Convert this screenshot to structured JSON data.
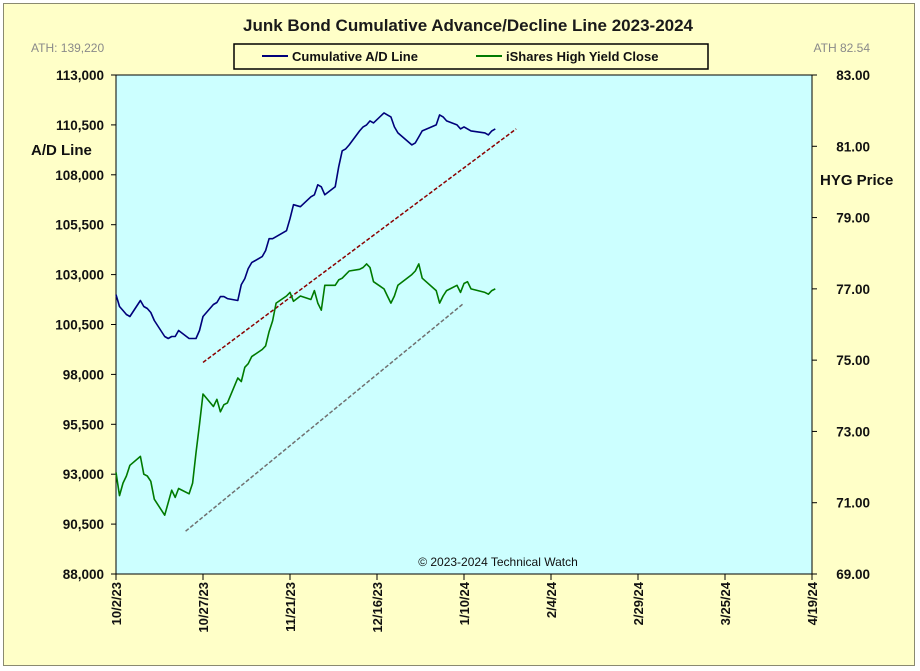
{
  "chart_data": {
    "type": "line",
    "title": "Junk Bond Cumulative  Advance/Decline  Line 2023-2024",
    "ath_left": "ATH: 139,220",
    "ath_right": "ATH 82.54",
    "ylabel_left": "A/D Line",
    "ylabel_right": "HYG Price",
    "copyright": "© 2023-2024  Technical Watch",
    "x_ticks": [
      "10/2/23",
      "10/27/23",
      "11/21/23",
      "12/16/23",
      "1/10/24",
      "2/4/24",
      "2/29/24",
      "3/25/24",
      "4/19/24"
    ],
    "x_range": [
      "2023-10-02",
      "2024-04-19"
    ],
    "ylim_left": [
      88000,
      113000
    ],
    "yticks_left": [
      "113,000",
      "110,500",
      "108,000",
      "105,500",
      "103,000",
      "100,500",
      "98,000",
      "95,500",
      "93,000",
      "90,500",
      "88,000"
    ],
    "ylim_right": [
      69.0,
      83.0
    ],
    "yticks_right": [
      "83.00",
      "81.00",
      "79.00",
      "77.00",
      "75.00",
      "73.00",
      "71.00",
      "69.00"
    ],
    "legend": [
      "Cumulative A/D Line",
      "iShares High Yield Close"
    ],
    "grid": false,
    "background": "#ccffff",
    "series": [
      {
        "name": "Cumulative A/D Line",
        "axis": "left",
        "color": "#00007a",
        "x": [
          "2023-10-02",
          "2023-10-03",
          "2023-10-04",
          "2023-10-05",
          "2023-10-06",
          "2023-10-09",
          "2023-10-10",
          "2023-10-11",
          "2023-10-12",
          "2023-10-13",
          "2023-10-16",
          "2023-10-17",
          "2023-10-18",
          "2023-10-19",
          "2023-10-20",
          "2023-10-23",
          "2023-10-24",
          "2023-10-25",
          "2023-10-26",
          "2023-10-27",
          "2023-10-30",
          "2023-10-31",
          "2023-11-01",
          "2023-11-02",
          "2023-11-03",
          "2023-11-06",
          "2023-11-07",
          "2023-11-08",
          "2023-11-09",
          "2023-11-10",
          "2023-11-13",
          "2023-11-14",
          "2023-11-15",
          "2023-11-16",
          "2023-11-17",
          "2023-11-20",
          "2023-11-21",
          "2023-11-22",
          "2023-11-24",
          "2023-11-27",
          "2023-11-28",
          "2023-11-29",
          "2023-11-30",
          "2023-12-01",
          "2023-12-04",
          "2023-12-05",
          "2023-12-06",
          "2023-12-07",
          "2023-12-08",
          "2023-12-11",
          "2023-12-12",
          "2023-12-13",
          "2023-12-14",
          "2023-12-15",
          "2023-12-18",
          "2023-12-19",
          "2023-12-20",
          "2023-12-21",
          "2023-12-22",
          "2023-12-26",
          "2023-12-27",
          "2023-12-28",
          "2023-12-29",
          "2024-01-02",
          "2024-01-03",
          "2024-01-04",
          "2024-01-05",
          "2024-01-08",
          "2024-01-09",
          "2024-01-10",
          "2024-01-11",
          "2024-01-12",
          "2024-01-16",
          "2024-01-17",
          "2024-01-18",
          "2024-01-19"
        ],
        "values": [
          102000,
          101400,
          101200,
          101000,
          100900,
          101700,
          101400,
          101300,
          101100,
          100700,
          99900,
          99800,
          99900,
          99900,
          100200,
          99800,
          99800,
          99800,
          100200,
          100900,
          101500,
          101600,
          101900,
          101900,
          101800,
          101700,
          102500,
          102800,
          103300,
          103600,
          103900,
          104200,
          104800,
          104800,
          104900,
          105200,
          105800,
          106500,
          106400,
          106900,
          107000,
          107500,
          107400,
          107000,
          107400,
          108400,
          109200,
          109300,
          109500,
          110200,
          110400,
          110500,
          110700,
          110600,
          111100,
          111000,
          110900,
          110400,
          110100,
          109500,
          109600,
          109900,
          110200,
          110500,
          111000,
          110900,
          110700,
          110500,
          110300,
          110400,
          110300,
          110200,
          110100,
          110000,
          110200,
          110300
        ]
      },
      {
        "name": "iShares High Yield Close",
        "axis": "right",
        "color": "#007a00",
        "x": [
          "2023-10-02",
          "2023-10-03",
          "2023-10-04",
          "2023-10-05",
          "2023-10-06",
          "2023-10-09",
          "2023-10-10",
          "2023-10-11",
          "2023-10-12",
          "2023-10-13",
          "2023-10-16",
          "2023-10-17",
          "2023-10-18",
          "2023-10-19",
          "2023-10-20",
          "2023-10-23",
          "2023-10-24",
          "2023-10-25",
          "2023-10-26",
          "2023-10-27",
          "2023-10-30",
          "2023-10-31",
          "2023-11-01",
          "2023-11-02",
          "2023-11-03",
          "2023-11-06",
          "2023-11-07",
          "2023-11-08",
          "2023-11-09",
          "2023-11-10",
          "2023-11-13",
          "2023-11-14",
          "2023-11-15",
          "2023-11-16",
          "2023-11-17",
          "2023-11-20",
          "2023-11-21",
          "2023-11-22",
          "2023-11-24",
          "2023-11-27",
          "2023-11-28",
          "2023-11-29",
          "2023-11-30",
          "2023-12-01",
          "2023-12-04",
          "2023-12-05",
          "2023-12-06",
          "2023-12-07",
          "2023-12-08",
          "2023-12-11",
          "2023-12-12",
          "2023-12-13",
          "2023-12-14",
          "2023-12-15",
          "2023-12-18",
          "2023-12-19",
          "2023-12-20",
          "2023-12-21",
          "2023-12-22",
          "2023-12-26",
          "2023-12-27",
          "2023-12-28",
          "2023-12-29",
          "2024-01-02",
          "2024-01-03",
          "2024-01-04",
          "2024-01-05",
          "2024-01-08",
          "2024-01-09",
          "2024-01-10",
          "2024-01-11",
          "2024-01-12",
          "2024-01-16",
          "2024-01-17",
          "2024-01-18",
          "2024-01-19"
        ],
        "values": [
          71.85,
          71.2,
          71.55,
          71.75,
          72.05,
          72.3,
          71.8,
          71.75,
          71.6,
          71.1,
          70.65,
          71.0,
          71.35,
          71.15,
          71.4,
          71.25,
          71.55,
          72.4,
          73.2,
          74.05,
          73.7,
          73.9,
          73.55,
          73.75,
          73.8,
          74.5,
          74.4,
          74.8,
          74.9,
          75.1,
          75.3,
          75.4,
          75.8,
          76.1,
          76.6,
          76.8,
          76.9,
          76.65,
          76.8,
          76.7,
          76.95,
          76.6,
          76.4,
          77.1,
          77.1,
          77.25,
          77.3,
          77.4,
          77.5,
          77.55,
          77.6,
          77.7,
          77.6,
          77.2,
          77.0,
          76.8,
          76.6,
          76.8,
          77.1,
          77.4,
          77.5,
          77.7,
          77.3,
          76.95,
          76.6,
          76.8,
          76.95,
          77.1,
          76.9,
          77.15,
          77.2,
          77.0,
          76.9,
          76.85,
          76.95,
          77.0
        ]
      }
    ],
    "trendlines": [
      {
        "axis": "left",
        "color": "#8b0000",
        "style": "dashed",
        "x": [
          "2023-10-27",
          "2024-01-25"
        ],
        "y": [
          98600,
          110300
        ]
      },
      {
        "axis": "right",
        "color": "#707070",
        "style": "dashed",
        "x": [
          "2023-10-22",
          "2024-01-10"
        ],
        "y": [
          70.2,
          76.6
        ]
      }
    ]
  }
}
